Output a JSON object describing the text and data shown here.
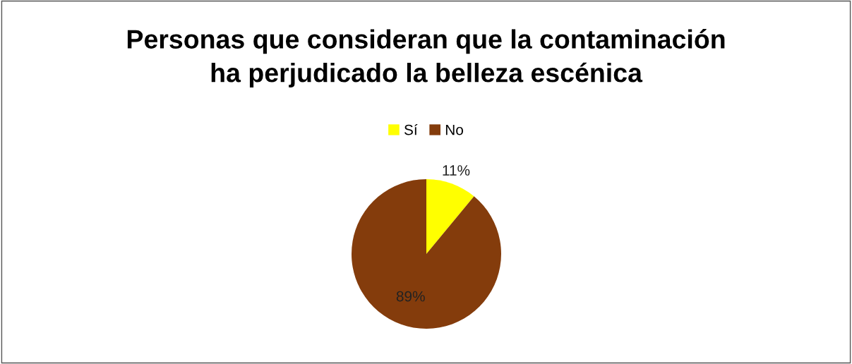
{
  "chart_data": {
    "type": "pie",
    "title": "Personas que consideran que la contaminación\nha perjudicado la belleza escénica",
    "categories": [
      "Sí",
      "No"
    ],
    "values": [
      11,
      89
    ],
    "value_labels": [
      "11%",
      "89%"
    ],
    "colors": [
      "#ffff00",
      "#843c0c"
    ],
    "legend": "top"
  }
}
